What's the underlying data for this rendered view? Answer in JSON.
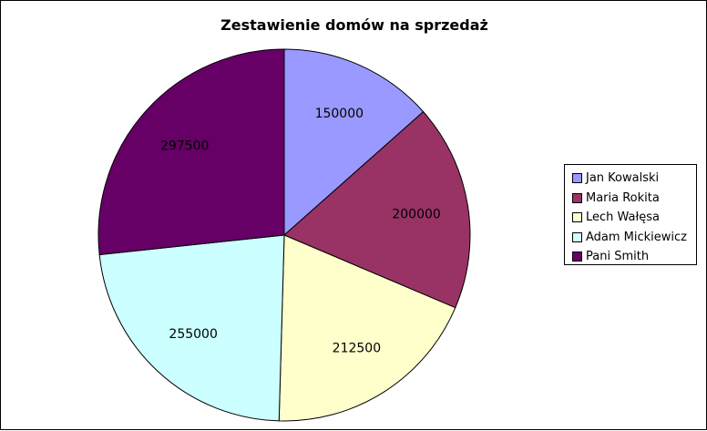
{
  "chart_data": {
    "type": "pie",
    "title": "Zestawienie domów na sprzedaż",
    "categories": [
      "Jan Kowalski",
      "Maria Rokita",
      "Lech Wałęsa",
      "Adam Mickiewicz",
      "Pani Smith"
    ],
    "values": [
      150000,
      200000,
      212500,
      255000,
      297500
    ],
    "data_labels": [
      "150000",
      "200000",
      "212500",
      "255000",
      "297500"
    ],
    "colors": [
      "#9999ff",
      "#993366",
      "#ffffcc",
      "#ccffff",
      "#660066"
    ],
    "legend_position": "right",
    "start_angle": "12 o'clock",
    "direction": "clockwise"
  }
}
